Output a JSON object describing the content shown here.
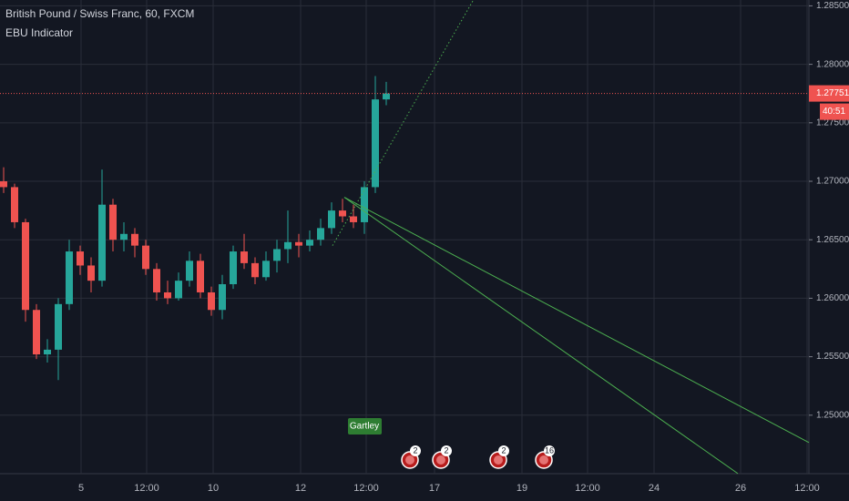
{
  "chart_data": {
    "type": "candlestick",
    "title": "British Pound / Swiss Franc, 60, FXCM",
    "indicator": "EBU Indicator",
    "up_color": "#26a69a",
    "down_color": "#ef5350",
    "x": [
      4,
      16,
      28,
      40,
      52,
      64,
      76,
      88,
      100,
      112,
      124,
      136,
      148,
      160,
      172,
      184,
      196,
      208,
      220,
      232,
      244,
      256,
      268,
      280,
      292,
      304,
      316,
      328,
      340,
      352,
      364,
      376,
      388,
      400,
      412,
      424
    ],
    "open": [
      1.27,
      1.2695,
      1.2665,
      1.259,
      1.2552,
      1.2556,
      1.2595,
      1.264,
      1.2628,
      1.2615,
      1.268,
      1.265,
      1.2655,
      1.2645,
      1.2625,
      1.2605,
      1.26,
      1.2615,
      1.2632,
      1.2605,
      1.259,
      1.2612,
      1.264,
      1.263,
      1.2618,
      1.2632,
      1.2642,
      1.2648,
      1.2645,
      1.265,
      1.266,
      1.2675,
      1.267,
      1.2665,
      1.2695,
      1.277
    ],
    "high": [
      1.2712,
      1.2698,
      1.2668,
      1.2595,
      1.2565,
      1.26,
      1.265,
      1.2645,
      1.2635,
      1.271,
      1.2685,
      1.2665,
      1.266,
      1.265,
      1.263,
      1.2615,
      1.2622,
      1.264,
      1.2638,
      1.261,
      1.262,
      1.2645,
      1.2655,
      1.2635,
      1.264,
      1.265,
      1.2675,
      1.2655,
      1.2658,
      1.2668,
      1.2682,
      1.2685,
      1.268,
      1.27,
      1.279,
      1.2785
    ],
    "low": [
      1.269,
      1.266,
      1.258,
      1.2548,
      1.2545,
      1.253,
      1.259,
      1.262,
      1.2605,
      1.261,
      1.264,
      1.264,
      1.2635,
      1.262,
      1.2598,
      1.2595,
      1.2598,
      1.261,
      1.26,
      1.2585,
      1.2582,
      1.2608,
      1.2625,
      1.2612,
      1.2615,
      1.2622,
      1.263,
      1.2635,
      1.264,
      1.2645,
      1.2655,
      1.2665,
      1.266,
      1.2655,
      1.269,
      1.2765
    ],
    "close": [
      1.2695,
      1.2665,
      1.259,
      1.2552,
      1.2556,
      1.2595,
      1.264,
      1.2628,
      1.2615,
      1.268,
      1.265,
      1.2655,
      1.2645,
      1.2625,
      1.2605,
      1.26,
      1.2615,
      1.2632,
      1.2605,
      1.259,
      1.2612,
      1.264,
      1.263,
      1.2618,
      1.2632,
      1.2642,
      1.2648,
      1.2645,
      1.265,
      1.266,
      1.2675,
      1.267,
      1.2665,
      1.2695,
      1.277,
      1.27751
    ],
    "xlim": [
      0,
      888
    ],
    "xticks": [
      {
        "value": 89,
        "label": "5"
      },
      {
        "value": 161,
        "label": "12:00"
      },
      {
        "value": 234,
        "label": "10"
      },
      {
        "value": 330,
        "label": "12"
      },
      {
        "value": 402,
        "label": "12:00"
      },
      {
        "value": 477,
        "label": "17"
      },
      {
        "value": 573,
        "label": "19"
      },
      {
        "value": 645,
        "label": "12:00"
      },
      {
        "value": 718,
        "label": "24"
      },
      {
        "value": 813,
        "label": "26"
      },
      {
        "value": 886,
        "label": "12:00"
      }
    ],
    "ylim": [
      1.245,
      1.2855
    ],
    "yticks": [
      {
        "value": 1.285,
        "label": "1.28500"
      },
      {
        "value": 1.28,
        "label": "1.28000"
      },
      {
        "value": 1.275,
        "label": "1.27500"
      },
      {
        "value": 1.27,
        "label": "1.27000"
      },
      {
        "value": 1.265,
        "label": "1.26500"
      },
      {
        "value": 1.26,
        "label": "1.26000"
      },
      {
        "value": 1.255,
        "label": "1.25500"
      },
      {
        "value": 1.25,
        "label": "1.25000"
      }
    ],
    "grid": true,
    "last_price": 1.27751,
    "countdown": "40:51",
    "lines": [
      {
        "color": "#4caf50",
        "style": "dotted",
        "x": [
          365,
          520
        ],
        "y": [
          1.2645,
          1.28555
        ]
      },
      {
        "color": "#4caf50",
        "style": "solid",
        "x": [
          378,
          888
        ],
        "y": [
          1.26863,
          1.24766
        ]
      },
      {
        "color": "#4caf50",
        "style": "solid",
        "x": [
          378,
          810
        ],
        "y": [
          1.26863,
          1.24501
        ]
      }
    ],
    "pattern_label": "Gartley",
    "events": [
      {
        "count": 2
      },
      {
        "count": 2
      },
      {
        "count": 2
      },
      {
        "count": 16
      }
    ]
  }
}
